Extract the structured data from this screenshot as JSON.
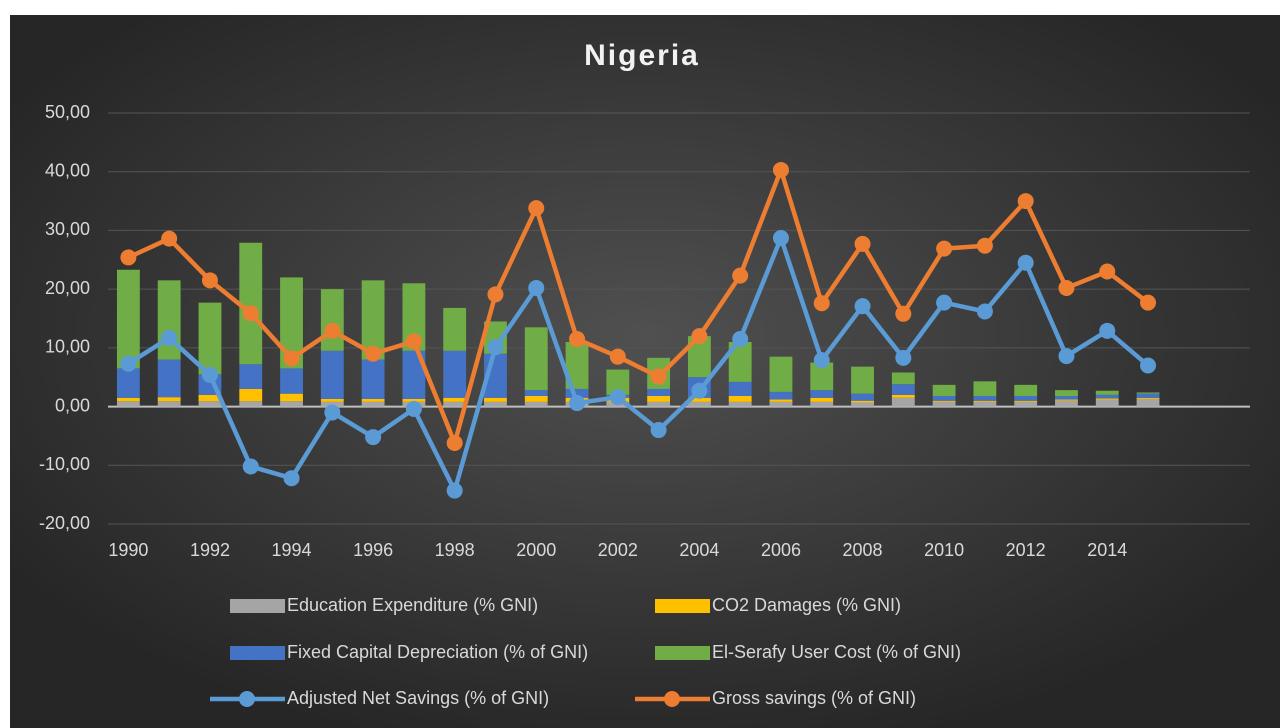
{
  "chart_data": {
    "type": "bar",
    "stacked": true,
    "title": "Nigeria",
    "x": [
      1990,
      1991,
      1992,
      1993,
      1994,
      1995,
      1996,
      1997,
      1998,
      1999,
      2000,
      2001,
      2002,
      2003,
      2004,
      2005,
      2006,
      2007,
      2008,
      2009,
      2010,
      2011,
      2012,
      2013,
      2014,
      2015
    ],
    "xlim": [
      1989.5,
      2017.5
    ],
    "xticks": [
      1990,
      1992,
      1994,
      1996,
      1998,
      2000,
      2002,
      2004,
      2006,
      2008,
      2010,
      2012,
      2014
    ],
    "ylim": [
      -20,
      50
    ],
    "yticks": [
      {
        "value": -20,
        "label": "-20,00"
      },
      {
        "value": -10,
        "label": "-10,00"
      },
      {
        "value": 0,
        "label": "0,00"
      },
      {
        "value": 10,
        "label": "10,00"
      },
      {
        "value": 20,
        "label": "20,00"
      },
      {
        "value": 30,
        "label": "30,00"
      },
      {
        "value": 40,
        "label": "40,00"
      },
      {
        "value": 50,
        "label": "50,00"
      }
    ],
    "grid": true,
    "legend": "bottom",
    "series": [
      {
        "name": "Education Expenditure (% GNI)",
        "type": "bar",
        "color": "#a5a5a5",
        "values": [
          0.9,
          0.9,
          0.9,
          0.9,
          0.9,
          0.8,
          0.8,
          0.8,
          0.8,
          0.8,
          0.8,
          0.8,
          0.8,
          0.8,
          0.8,
          0.8,
          0.8,
          0.8,
          0.7,
          1.5,
          0.8,
          0.8,
          0.8,
          1.0,
          1.2,
          1.3
        ]
      },
      {
        "name": "CO2 Damages (% GNI)",
        "type": "bar",
        "color": "#ffc000",
        "values": [
          0.6,
          0.7,
          1.1,
          2.1,
          1.3,
          0.5,
          0.5,
          0.5,
          0.7,
          0.7,
          1.0,
          0.7,
          0.7,
          1.0,
          0.7,
          1.0,
          0.4,
          0.7,
          0.3,
          0.5,
          0.2,
          0.2,
          0.2,
          0.2,
          0.2,
          0.2
        ]
      },
      {
        "name": "Fixed Capital Depreciation (% of GNI)",
        "type": "bar",
        "color": "#4472c4",
        "values": [
          5.0,
          6.4,
          3.5,
          4.2,
          4.3,
          8.2,
          6.7,
          8.2,
          8.0,
          7.5,
          1.0,
          1.5,
          0.5,
          1.2,
          3.5,
          2.4,
          1.3,
          1.3,
          1.2,
          1.8,
          0.8,
          0.8,
          0.8,
          0.6,
          0.6,
          0.7
        ]
      },
      {
        "name": "El-Serafy User Cost (% of GNI)",
        "type": "bar",
        "color": "#70ad47",
        "values": [
          16.8,
          13.5,
          12.2,
          20.7,
          15.5,
          10.5,
          13.5,
          11.5,
          7.3,
          5.5,
          10.7,
          8.0,
          4.3,
          5.3,
          7.0,
          6.8,
          6.0,
          4.7,
          4.6,
          2.0,
          1.9,
          2.5,
          1.9,
          1.0,
          0.7,
          0.2
        ]
      },
      {
        "name": "Adjusted Net Savings (% of GNI)",
        "type": "line",
        "color": "#5b9bd5",
        "values": [
          7.3,
          11.7,
          5.4,
          -10.2,
          -12.2,
          -1.0,
          -5.2,
          -0.4,
          -14.3,
          10.1,
          20.2,
          0.6,
          1.6,
          -4.0,
          2.7,
          11.5,
          28.7,
          7.9,
          17.1,
          8.3,
          17.7,
          16.2,
          24.5,
          8.6,
          12.9,
          7.0
        ]
      },
      {
        "name": "Gross savings (% of GNI)",
        "type": "line",
        "color": "#ed7d31",
        "values": [
          25.4,
          28.6,
          21.5,
          15.9,
          8.2,
          12.9,
          9.0,
          11.1,
          -6.2,
          19.1,
          33.8,
          11.5,
          8.5,
          5.1,
          12.0,
          22.3,
          40.3,
          17.6,
          27.7,
          15.8,
          26.9,
          27.4,
          35.0,
          20.2,
          23.0,
          17.7
        ]
      }
    ]
  }
}
